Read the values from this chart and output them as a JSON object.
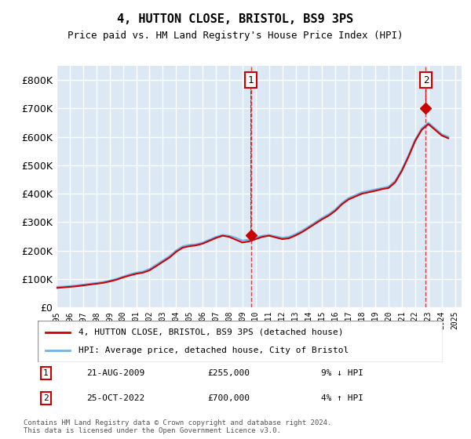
{
  "title": "4, HUTTON CLOSE, BRISTOL, BS9 3PS",
  "subtitle": "Price paid vs. HM Land Registry's House Price Index (HPI)",
  "xlabel": "",
  "ylabel": "",
  "ylim": [
    0,
    850000
  ],
  "yticks": [
    0,
    100000,
    200000,
    300000,
    400000,
    500000,
    600000,
    700000,
    800000
  ],
  "ytick_labels": [
    "£0",
    "£100K",
    "£200K",
    "£300K",
    "£400K",
    "£500K",
    "£600K",
    "£700K",
    "£800K"
  ],
  "background_color": "#ffffff",
  "plot_bg_color": "#dce9f5",
  "grid_color": "#ffffff",
  "hpi_color": "#6fb3e8",
  "price_color": "#cc0000",
  "transaction1_date": 2009.64,
  "transaction1_price": 255000,
  "transaction2_date": 2022.81,
  "transaction2_price": 700000,
  "legend_label1": "4, HUTTON CLOSE, BRISTOL, BS9 3PS (detached house)",
  "legend_label2": "HPI: Average price, detached house, City of Bristol",
  "annotation1_label": "1",
  "annotation1_date": "21-AUG-2009",
  "annotation1_price": "£255,000",
  "annotation1_pct": "9% ↓ HPI",
  "annotation2_label": "2",
  "annotation2_date": "25-OCT-2022",
  "annotation2_price": "£700,000",
  "annotation2_pct": "4% ↑ HPI",
  "footer": "Contains HM Land Registry data © Crown copyright and database right 2024.\nThis data is licensed under the Open Government Licence v3.0.",
  "hpi_data": {
    "years": [
      1995,
      1995.5,
      1996,
      1996.5,
      1997,
      1997.5,
      1998,
      1998.5,
      1999,
      1999.5,
      2000,
      2000.5,
      2001,
      2001.5,
      2002,
      2002.5,
      2003,
      2003.5,
      2004,
      2004.5,
      2005,
      2005.5,
      2006,
      2006.5,
      2007,
      2007.5,
      2008,
      2008.5,
      2009,
      2009.5,
      2010,
      2010.5,
      2011,
      2011.5,
      2012,
      2012.5,
      2013,
      2013.5,
      2014,
      2014.5,
      2015,
      2015.5,
      2016,
      2016.5,
      2017,
      2017.5,
      2018,
      2018.5,
      2019,
      2019.5,
      2020,
      2020.5,
      2021,
      2021.5,
      2022,
      2022.5,
      2023,
      2023.5,
      2024,
      2024.5
    ],
    "values": [
      72000,
      73000,
      75000,
      77000,
      80000,
      83000,
      86000,
      89000,
      94000,
      100000,
      108000,
      116000,
      122000,
      126000,
      135000,
      150000,
      165000,
      180000,
      200000,
      215000,
      220000,
      222000,
      228000,
      238000,
      248000,
      255000,
      252000,
      245000,
      235000,
      238000,
      245000,
      252000,
      255000,
      250000,
      245000,
      248000,
      258000,
      270000,
      285000,
      300000,
      315000,
      328000,
      345000,
      368000,
      385000,
      395000,
      405000,
      410000,
      415000,
      420000,
      425000,
      445000,
      485000,
      535000,
      590000,
      630000,
      650000,
      630000,
      610000,
      600000
    ]
  },
  "price_data": {
    "years": [
      1995,
      1995.5,
      1996,
      1996.5,
      1997,
      1997.5,
      1998,
      1998.5,
      1999,
      1999.5,
      2000,
      2000.5,
      2001,
      2001.5,
      2002,
      2002.5,
      2003,
      2003.5,
      2004,
      2004.5,
      2005,
      2005.5,
      2006,
      2006.5,
      2007,
      2007.5,
      2008,
      2008.5,
      2009,
      2009.5,
      2010,
      2010.5,
      2011,
      2011.5,
      2012,
      2012.5,
      2013,
      2013.5,
      2014,
      2014.5,
      2015,
      2015.5,
      2016,
      2016.5,
      2017,
      2017.5,
      2018,
      2018.5,
      2019,
      2019.5,
      2020,
      2020.5,
      2021,
      2021.5,
      2022,
      2022.5,
      2023,
      2023.5,
      2024,
      2024.5
    ],
    "values": [
      68000,
      70000,
      72000,
      74000,
      77000,
      80000,
      83000,
      86000,
      91000,
      97000,
      105000,
      112000,
      118000,
      122000,
      130000,
      145000,
      160000,
      175000,
      195000,
      210000,
      215000,
      218000,
      224000,
      234000,
      244000,
      252000,
      248000,
      238000,
      228000,
      232000,
      240000,
      248000,
      252000,
      246000,
      240000,
      243000,
      253000,
      265000,
      280000,
      295000,
      310000,
      323000,
      340000,
      363000,
      380000,
      390000,
      400000,
      405000,
      410000,
      416000,
      420000,
      440000,
      480000,
      530000,
      585000,
      625000,
      645000,
      625000,
      605000,
      595000
    ]
  },
  "xlim": [
    1995,
    2025.5
  ]
}
